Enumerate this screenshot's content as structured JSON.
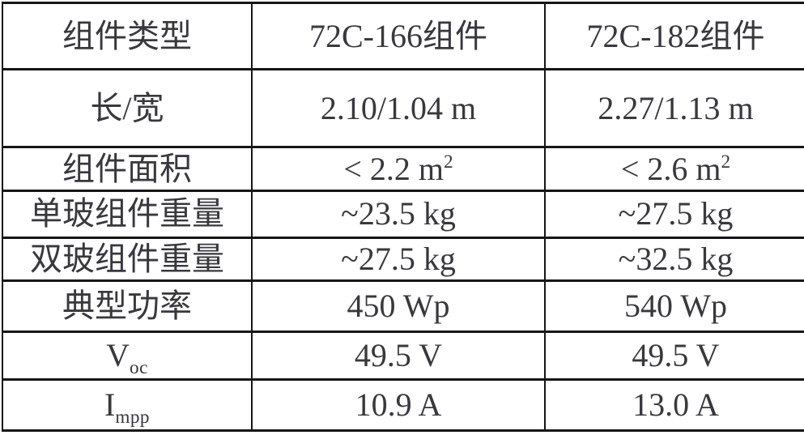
{
  "colors": {
    "text": "#38383d",
    "border": "#161616",
    "background": "#ffffff"
  },
  "table": {
    "columns": [
      "组件类型",
      "72C-166组件",
      "72C-182组件"
    ],
    "rows": [
      {
        "label": "长/宽",
        "values": [
          "2.10/1.04 m",
          "2.27/1.13 m"
        ]
      },
      {
        "label": "组件面积",
        "values": [
          "< 2.2 m",
          "< 2.6 m"
        ],
        "superscript": "2"
      },
      {
        "label": "单玻组件重量",
        "values": [
          "~23.5 kg",
          "~27.5 kg"
        ]
      },
      {
        "label": "双玻组件重量",
        "values": [
          "~27.5 kg",
          "~32.5 kg"
        ]
      },
      {
        "label": "典型功率",
        "values": [
          "450 Wp",
          "540 Wp"
        ]
      },
      {
        "label_base": "V",
        "label_sub": "oc",
        "values": [
          "49.5 V",
          "49.5 V"
        ]
      },
      {
        "label_base": "I",
        "label_sub": "mpp",
        "values": [
          "10.9 A",
          "13.0 A"
        ]
      }
    ]
  }
}
